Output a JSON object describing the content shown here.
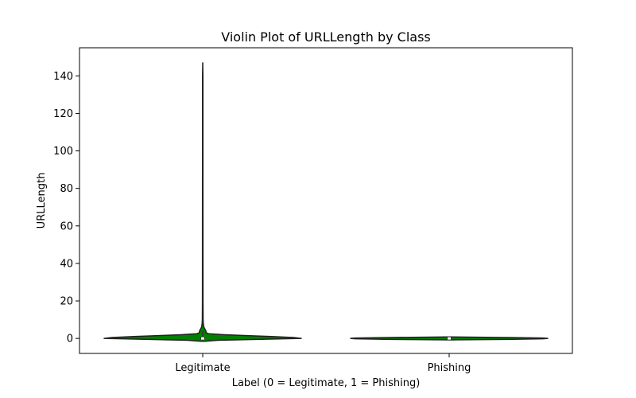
{
  "chart_data": {
    "type": "violin",
    "title": "Violin Plot of URLLength by Class",
    "xlabel": "Label (0 = Legitimate, 1 = Phishing)",
    "ylabel": "URLLength",
    "categories": [
      "Legitimate",
      "Phishing"
    ],
    "ylim": [
      -8,
      155
    ],
    "yticks": [
      0,
      20,
      40,
      60,
      80,
      100,
      120,
      140
    ],
    "grid": false,
    "fill_color": "#008000",
    "line_color": "#222222",
    "violins": [
      {
        "category": "Legitimate",
        "min": -1.5,
        "max": 147,
        "q1": -0.5,
        "median": 0,
        "q3": 0.8,
        "whisker_low": -1.5,
        "whisker_high": 4,
        "density": [
          [
            -1.5,
            0.02
          ],
          [
            -1.0,
            0.15
          ],
          [
            -0.5,
            0.55
          ],
          [
            0.0,
            1.0
          ],
          [
            0.5,
            0.92
          ],
          [
            1.0,
            0.7
          ],
          [
            1.5,
            0.45
          ],
          [
            2.0,
            0.22
          ],
          [
            2.5,
            0.06
          ],
          [
            3.0,
            0.035
          ],
          [
            4.0,
            0.032
          ],
          [
            5.0,
            0.022
          ],
          [
            6.0,
            0.012
          ],
          [
            8.0,
            0.006
          ],
          [
            10.0,
            0.004
          ],
          [
            20.0,
            0.003
          ],
          [
            60.0,
            0.0025
          ],
          [
            100.0,
            0.0022
          ],
          [
            140.0,
            0.002
          ],
          [
            147.0,
            0.0
          ]
        ]
      },
      {
        "category": "Phishing",
        "min": -0.8,
        "max": 0.8,
        "q1": -0.2,
        "median": 0,
        "q3": 0.2,
        "whisker_low": -0.8,
        "whisker_high": 0.8,
        "density": [
          [
            -0.8,
            0.0
          ],
          [
            -0.5,
            0.6
          ],
          [
            -0.2,
            0.95
          ],
          [
            0.0,
            1.0
          ],
          [
            0.2,
            0.95
          ],
          [
            0.5,
            0.6
          ],
          [
            0.8,
            0.0
          ]
        ]
      }
    ]
  }
}
